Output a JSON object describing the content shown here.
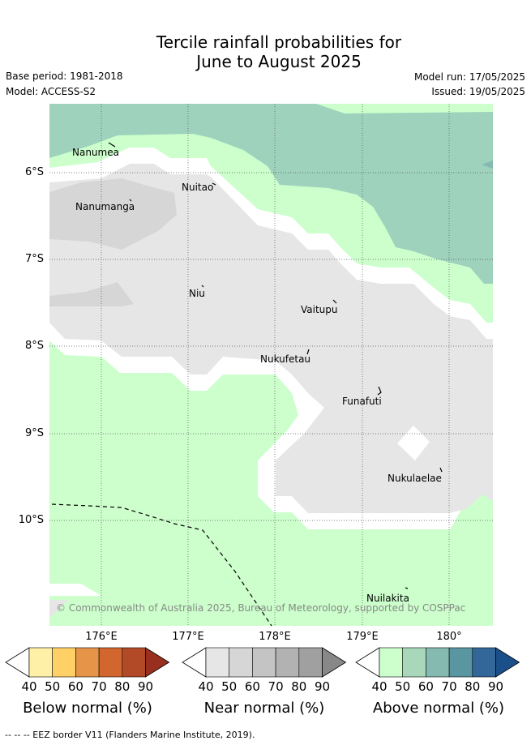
{
  "title_line1": "Tercile rainfall probabilities for",
  "title_line2": "June to August 2025",
  "base_period": "Base period: 1981-2018",
  "model": "Model: ACCESS-S2",
  "model_run": "Model run: 17/05/2025",
  "issued": "Issued: 19/05/2025",
  "places": [
    "Nanumea",
    "Nuitao",
    "Nanumanga",
    "Niu",
    "Vaitupu",
    "Nukufetau",
    "Funafuti",
    "Nukulaelae",
    "Nuilakita"
  ],
  "lat_labels": [
    "6°S",
    "7°S",
    "8°S",
    "9°S",
    "10°S"
  ],
  "lon_labels": [
    "176°E",
    "177°E",
    "178°E",
    "179°E",
    "180°"
  ],
  "copyright": "© Commonwealth of Australia 2025, Bureau of Meteorology, supported by COSPPac",
  "colorbars": [
    {
      "title": "Below normal (%)",
      "ticks": [
        "40",
        "50",
        "60",
        "70",
        "80",
        "90"
      ],
      "colors": [
        "#ffffff",
        "#fff0a8",
        "#ffd066",
        "#e59448",
        "#d2662f",
        "#b24a28",
        "#99301f"
      ]
    },
    {
      "title": "Near normal (%)",
      "ticks": [
        "40",
        "50",
        "60",
        "70",
        "80",
        "90"
      ],
      "colors": [
        "#ffffff",
        "#e6e6e6",
        "#d6d6d6",
        "#c4c4c4",
        "#b2b2b2",
        "#a0a0a0",
        "#888888"
      ]
    },
    {
      "title": "Above normal (%)",
      "ticks": [
        "40",
        "50",
        "60",
        "70",
        "80",
        "90"
      ],
      "colors": [
        "#ffffff",
        "#ccffcc",
        "#a8d8b9",
        "#84bab0",
        "#5a96a2",
        "#336699",
        "#1a4f8a"
      ]
    }
  ],
  "footer": "--  --  -- EEZ border V11 (Flanders Marine Institute, 2019)."
}
